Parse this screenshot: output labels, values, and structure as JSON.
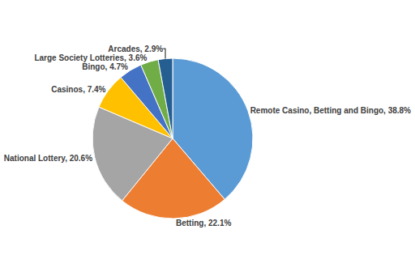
{
  "chart_data": {
    "type": "pie",
    "categories": [
      "Remote Casino, Betting and Bingo",
      "Betting",
      "National Lottery",
      "Casinos",
      "Bingo",
      "Large Society Lotteries",
      "Arcades"
    ],
    "values": [
      38.8,
      22.1,
      20.6,
      7.4,
      4.7,
      3.6,
      2.9
    ],
    "value_labels": [
      "Remote Casino, Betting and Bingo, 38.8%",
      "Betting, 22.1%",
      "National Lottery, 20.6%",
      "Casinos, 7.4%",
      "Bingo, 4.7%",
      "Large Society Lotteries, 3.6%",
      "Arcades, 2.9%"
    ],
    "colors": [
      "#5b9bd5",
      "#ed7d31",
      "#a5a5a5",
      "#ffc000",
      "#4472c4",
      "#70ad47",
      "#255e91"
    ],
    "data_labels": true
  }
}
